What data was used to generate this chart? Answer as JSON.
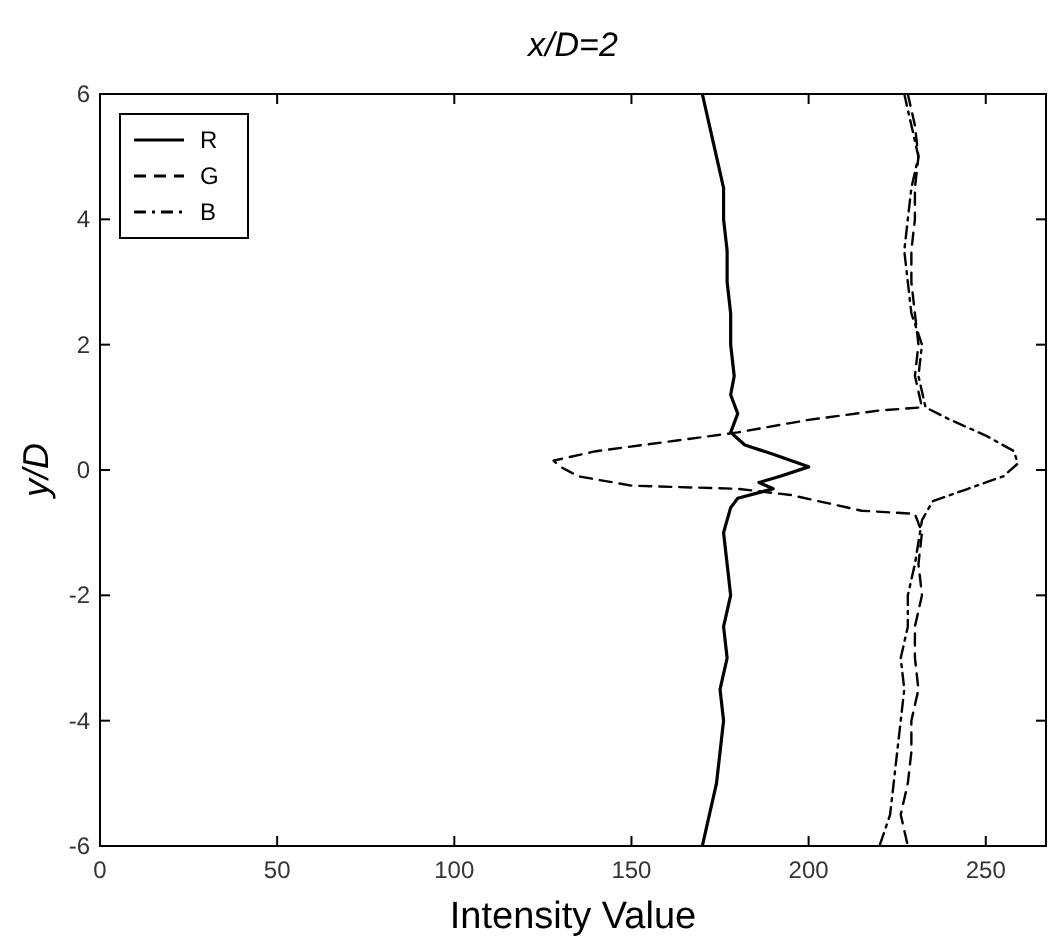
{
  "chart_data": {
    "type": "line",
    "title": "x/D=2",
    "xlabel": "Intensity Value",
    "ylabel": "y/D",
    "xlim": [
      0,
      267
    ],
    "xticks": [
      0,
      50,
      100,
      150,
      200,
      250
    ],
    "ylim": [
      -6,
      6
    ],
    "yticks": [
      -6,
      -4,
      -2,
      0,
      2,
      4,
      6
    ],
    "legend": "top left",
    "grid": false,
    "series": [
      {
        "name": "R",
        "color": "#000000",
        "line_style": "solid",
        "x": [
          170,
          172,
          174,
          176,
          176,
          177,
          177,
          178,
          178,
          179,
          178,
          180,
          178,
          182,
          190,
          200,
          192,
          186,
          190,
          180,
          178,
          176,
          177,
          178,
          176,
          177,
          175,
          176,
          175,
          174,
          172,
          170
        ],
        "values": [
          6,
          5.5,
          5,
          4.5,
          4,
          3.5,
          3,
          2.5,
          2,
          1.5,
          1.2,
          0.9,
          0.6,
          0.4,
          0.25,
          0.05,
          -0.1,
          -0.2,
          -0.3,
          -0.45,
          -0.6,
          -1,
          -1.5,
          -2,
          -2.5,
          -3,
          -3.5,
          -4,
          -4.5,
          -5,
          -5.5,
          -6
        ]
      },
      {
        "name": "G",
        "color": "#000000",
        "line_style": "dashed",
        "x": [
          228,
          230,
          231,
          230,
          230,
          229,
          229,
          230,
          231,
          230,
          232,
          220,
          200,
          180,
          160,
          140,
          128,
          130,
          135,
          150,
          180,
          195,
          215,
          230,
          232,
          231,
          232,
          230,
          230,
          231,
          229,
          229,
          228,
          226,
          228
        ],
        "values": [
          6,
          5.5,
          5,
          4.5,
          4,
          3.5,
          3,
          2.5,
          2,
          1.5,
          1.0,
          0.95,
          0.8,
          0.6,
          0.45,
          0.3,
          0.15,
          0.05,
          -0.1,
          -0.25,
          -0.3,
          -0.4,
          -0.65,
          -0.7,
          -1,
          -1.5,
          -2,
          -2.5,
          -3,
          -3.5,
          -4,
          -4.5,
          -5,
          -5.5,
          -6
        ]
      },
      {
        "name": "B",
        "color": "#000000",
        "line_style": "dashdot",
        "x": [
          227,
          229,
          231,
          229,
          228,
          227,
          228,
          229,
          232,
          231,
          233,
          240,
          250,
          258,
          259,
          255,
          245,
          235,
          232,
          230,
          228,
          228,
          226,
          227,
          226,
          225,
          224,
          223,
          220
        ],
        "values": [
          6,
          5.5,
          5,
          4.5,
          4,
          3.5,
          3,
          2.5,
          2,
          1.5,
          1.0,
          0.8,
          0.55,
          0.3,
          0.1,
          -0.1,
          -0.3,
          -0.5,
          -0.8,
          -1.5,
          -2,
          -2.5,
          -3,
          -3.5,
          -4,
          -4.5,
          -5,
          -5.5,
          -6
        ]
      }
    ]
  }
}
